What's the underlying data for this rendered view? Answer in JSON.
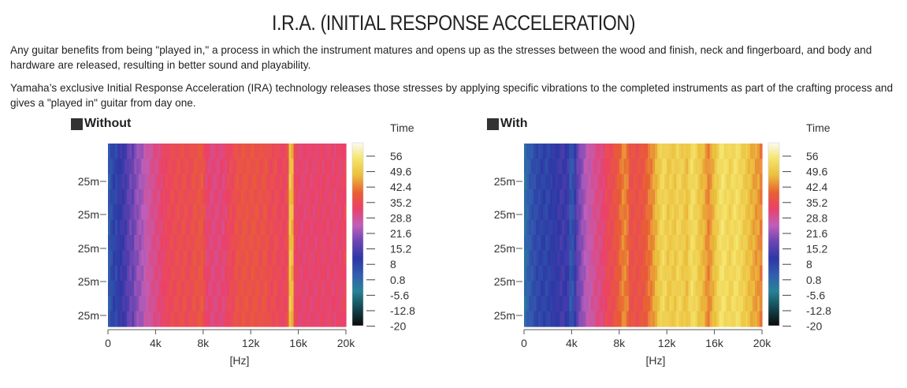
{
  "page": {
    "title": "I.R.A. (INITIAL RESPONSE ACCELERATION)",
    "paragraph1": "Any guitar benefits from being \"played in,\" a process in which the instrument matures and opens up as the stresses between the wood and finish, neck and fingerboard, and body and hardware are released, resulting in better sound and playability.",
    "paragraph2": "Yamaha’s exclusive Initial Response Acceleration (IRA) technology releases those stresses by applying specific vibrations to the completed instruments as part of the crafting process and gives a \"played in\" guitar from day one."
  },
  "chart_data": [
    {
      "type": "heatmap",
      "title": "Without",
      "xlabel": "[Hz]",
      "x_ticks": [
        "0",
        "4k",
        "8k",
        "12k",
        "16k",
        "20k"
      ],
      "xlim": [
        0,
        20000
      ],
      "y_ticks": [
        "25m",
        "25m",
        "25m",
        "25m",
        "25m"
      ],
      "colorbar": {
        "label": "Time",
        "ticks": [
          "56",
          "49.6",
          "42.4",
          "35.2",
          "28.8",
          "21.6",
          "15.2",
          "8",
          "0.8",
          "-5.6",
          "-12.8",
          "-20"
        ],
        "range": [
          -20,
          56
        ]
      },
      "column_values": [
        2,
        4,
        6,
        5,
        8,
        9,
        10,
        11,
        13,
        15,
        14,
        17,
        18,
        19,
        20,
        22,
        23,
        24,
        25,
        26,
        26,
        27,
        28,
        29,
        30,
        30,
        31,
        31,
        31,
        32,
        31,
        32,
        32,
        31,
        31,
        32,
        33,
        32,
        33,
        34,
        31,
        28,
        28,
        27,
        27,
        27,
        27,
        28,
        27,
        28,
        30,
        31,
        30,
        32,
        33,
        32,
        33,
        33,
        33,
        32,
        33,
        33,
        33,
        32,
        32,
        33,
        33,
        31,
        31,
        31,
        32,
        30,
        30,
        30,
        30,
        32,
        44,
        42,
        30,
        29,
        28,
        28,
        28,
        28,
        29,
        28,
        28,
        28,
        29,
        29,
        28,
        29,
        28,
        29,
        28,
        28,
        29,
        28,
        29,
        30
      ]
    },
    {
      "type": "heatmap",
      "title": "With",
      "xlabel": "[Hz]",
      "x_ticks": [
        "0",
        "4k",
        "8k",
        "12k",
        "16k",
        "20k"
      ],
      "xlim": [
        0,
        20000
      ],
      "y_ticks": [
        "25m",
        "25m",
        "25m",
        "25m",
        "25m"
      ],
      "colorbar": {
        "label": "Time",
        "ticks": [
          "56",
          "49.6",
          "42.4",
          "35.2",
          "28.8",
          "21.6",
          "15.2",
          "8",
          "0.8",
          "-5.6",
          "-12.8",
          "-20"
        ],
        "range": [
          -20,
          56
        ]
      },
      "column_values": [
        -2,
        0,
        2,
        3,
        4,
        5,
        5,
        6,
        6,
        5,
        6,
        7,
        8,
        8,
        9,
        10,
        10,
        9,
        10,
        2,
        3,
        10,
        14,
        16,
        18,
        20,
        22,
        22,
        24,
        25,
        26,
        26,
        27,
        28,
        30,
        31,
        31,
        32,
        33,
        34,
        36,
        38,
        38,
        37,
        33,
        32,
        33,
        32,
        33,
        33,
        34,
        35,
        37,
        38,
        40,
        42,
        44,
        46,
        47,
        46,
        44,
        45,
        45,
        44,
        46,
        46,
        45,
        44,
        43,
        46,
        48,
        47,
        46,
        44,
        43,
        42,
        40,
        38,
        40,
        42,
        44,
        46,
        48,
        49,
        48,
        47,
        46,
        47,
        48,
        48,
        47,
        46,
        45,
        44,
        43,
        42,
        41,
        40,
        40,
        38
      ]
    }
  ]
}
